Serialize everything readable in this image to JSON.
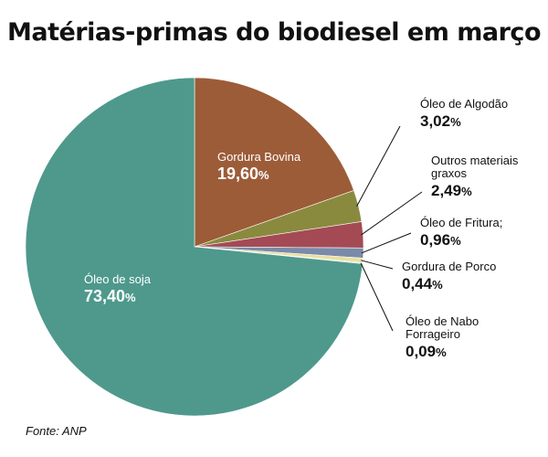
{
  "chart_data": {
    "type": "pie",
    "title": "Matérias-primas do biodiesel em março",
    "source": "Fonte: ANP",
    "slices": [
      {
        "label": "Gordura Bovina",
        "value": 19.6,
        "value_text": "19,60",
        "color": "#9c5c38"
      },
      {
        "label": "Óleo de Algodão",
        "value": 3.02,
        "value_text": "3,02",
        "color": "#8a8a3e"
      },
      {
        "label": "Outros materiais graxos",
        "value": 2.49,
        "value_text": "2,49",
        "color": "#a44a55"
      },
      {
        "label": "Óleo de Fritura;",
        "value": 0.96,
        "value_text": "0,96",
        "color": "#7a8aa8"
      },
      {
        "label": "Gordura de Porco",
        "value": 0.44,
        "value_text": "0,44",
        "color": "#e8e0a0"
      },
      {
        "label": "Óleo de Nabo Forrageiro",
        "value": 0.09,
        "value_text": "0,09",
        "color": "#c8c0e0"
      },
      {
        "label": "Óleo de soja",
        "value": 73.4,
        "value_text": "73,40",
        "color": "#4e998c"
      }
    ],
    "percent_symbol": "%"
  }
}
